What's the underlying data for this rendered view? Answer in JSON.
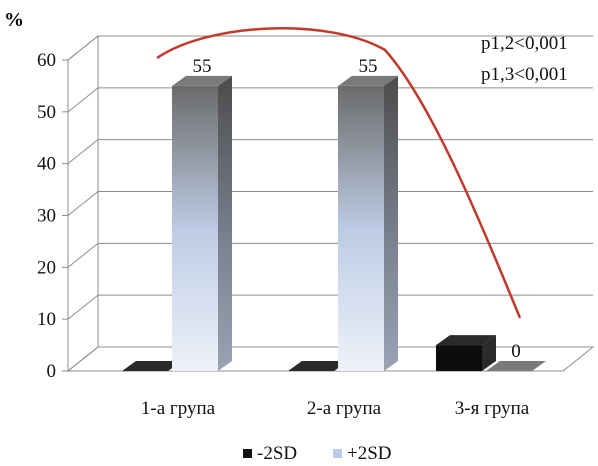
{
  "chart_data": {
    "type": "bar",
    "unit_label": "%",
    "categories": [
      "1-а група",
      "2-а група",
      "3-я група"
    ],
    "series": [
      {
        "name": "-2SD",
        "values": [
          0,
          0,
          5
        ],
        "color": "#111111"
      },
      {
        "name": "+2SD",
        "values": [
          55,
          55,
          0
        ],
        "color": "#b9cbe8"
      }
    ],
    "data_labels": [
      "55",
      "55",
      "0"
    ],
    "ylim": [
      0,
      60
    ],
    "yticks": [
      0,
      10,
      20,
      30,
      40,
      50,
      60
    ],
    "grid": true,
    "legend_position": "bottom-center",
    "annotations": [
      "p1,2<0,001",
      "p1,3<0,001"
    ],
    "trend_line_color": "#c0392b"
  }
}
